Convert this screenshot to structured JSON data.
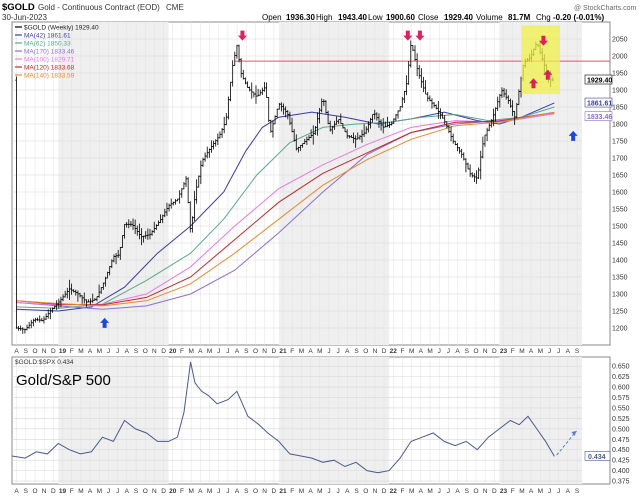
{
  "header": {
    "symbol": "$GOLD",
    "name": "Gold - Continuous Contract (EOD)",
    "exchange": "CME",
    "date": "30-Jun-2023",
    "open_label": "Open",
    "open": "1936.30",
    "high_label": "High",
    "high": "1943.40",
    "low_label": "Low",
    "low": "1900.60",
    "close_label": "Close",
    "close": "1929.40",
    "volume_label": "Volume",
    "volume": "81.7M",
    "chg_label": "Chg",
    "chg": "-0.20 (-0.01%)",
    "watermark": "@ StockCharts.com"
  },
  "legend": [
    {
      "text": "$GOLD (Weekly) 1929.40",
      "color": "#000000"
    },
    {
      "text": "MA(42) 1861.61",
      "color": "#3a3aa8"
    },
    {
      "text": "MA(62) 1850.33",
      "color": "#5aa88a"
    },
    {
      "text": "MA(170) 1833.46",
      "color": "#8b6fd0"
    },
    {
      "text": "MA(100) 1829.71",
      "color": "#e87ae0"
    },
    {
      "text": "MA(120) 1833.68",
      "color": "#c02828"
    },
    {
      "text": "MA(140) 1833.59",
      "color": "#e88a30"
    }
  ],
  "chart_data": [
    {
      "type": "line",
      "title": "Gold - Continuous Contract (EOD) Weekly",
      "ylim": [
        1150,
        2100
      ],
      "yticks": [
        1200,
        1250,
        1300,
        1350,
        1400,
        1450,
        1500,
        1550,
        1600,
        1650,
        1700,
        1750,
        1800,
        1850,
        1900,
        1950,
        2000,
        2050
      ],
      "x_range": [
        2018.58,
        2023.75
      ],
      "month_ticks": [
        "A",
        "S",
        "O",
        "N",
        "D",
        "19",
        "F",
        "M",
        "A",
        "M",
        "J",
        "J",
        "A",
        "S",
        "O",
        "N",
        "D",
        "20",
        "F",
        "M",
        "A",
        "M",
        "J",
        "J",
        "A",
        "S",
        "O",
        "N",
        "D",
        "21",
        "F",
        "M",
        "A",
        "M",
        "J",
        "J",
        "A",
        "S",
        "O",
        "N",
        "D",
        "22",
        "F",
        "M",
        "A",
        "M",
        "J",
        "J",
        "A",
        "S",
        "O",
        "N",
        "D",
        "23",
        "F",
        "M",
        "A",
        "M",
        "J",
        "J",
        "A",
        "S"
      ],
      "resistance_level": 1985,
      "value_tags": [
        {
          "value": 1929.4,
          "label": "1929.40"
        },
        {
          "value": 1861.61,
          "label": "1861.61"
        },
        {
          "value": 1833.46,
          "label": "1833.46"
        }
      ],
      "price": {
        "x": [
          2018.62,
          2018.7,
          2018.78,
          2018.86,
          2018.94,
          2019.02,
          2019.1,
          2019.18,
          2019.26,
          2019.34,
          2019.42,
          2019.5,
          2019.55,
          2019.6,
          2019.67,
          2019.75,
          2019.83,
          2019.92,
          2020.0,
          2020.08,
          2020.16,
          2020.2,
          2020.24,
          2020.3,
          2020.38,
          2020.46,
          2020.52,
          2020.58,
          2020.62,
          2020.66,
          2020.72,
          2020.8,
          2020.88,
          2020.92,
          2021.0,
          2021.08,
          2021.16,
          2021.24,
          2021.32,
          2021.4,
          2021.46,
          2021.54,
          2021.62,
          2021.7,
          2021.78,
          2021.86,
          2021.94,
          2022.02,
          2022.1,
          2022.16,
          2022.2,
          2022.26,
          2022.34,
          2022.42,
          2022.5,
          2022.58,
          2022.66,
          2022.74,
          2022.8,
          2022.86,
          2022.94,
          2023.02,
          2023.08,
          2023.14,
          2023.22,
          2023.28,
          2023.34,
          2023.4,
          2023.46,
          2023.5
        ],
        "values": [
          1200,
          1195,
          1225,
          1222,
          1255,
          1282,
          1315,
          1300,
          1275,
          1285,
          1340,
          1410,
          1415,
          1505,
          1505,
          1468,
          1475,
          1515,
          1560,
          1578,
          1640,
          1480,
          1590,
          1690,
          1730,
          1765,
          1810,
          1970,
          2030,
          1945,
          1905,
          1880,
          1910,
          1770,
          1860,
          1830,
          1725,
          1750,
          1775,
          1880,
          1780,
          1815,
          1765,
          1755,
          1775,
          1835,
          1790,
          1800,
          1850,
          1920,
          2040,
          1955,
          1880,
          1850,
          1810,
          1750,
          1710,
          1650,
          1640,
          1760,
          1820,
          1900,
          1870,
          1820,
          1980,
          1995,
          2040,
          1980,
          1930,
          1929
        ]
      },
      "series": [
        {
          "name": "MA(42)",
          "color": "#3a3aa8",
          "x": [
            2018.62,
            2019.0,
            2019.3,
            2019.6,
            2019.9,
            2020.2,
            2020.5,
            2020.7,
            2020.85,
            2021.0,
            2021.3,
            2021.6,
            2021.9,
            2022.2,
            2022.5,
            2022.8,
            2023.0,
            2023.2,
            2023.5
          ],
          "values": [
            1255,
            1250,
            1262,
            1320,
            1420,
            1500,
            1600,
            1720,
            1790,
            1820,
            1835,
            1820,
            1800,
            1815,
            1835,
            1810,
            1800,
            1820,
            1862
          ]
        },
        {
          "name": "MA(62)",
          "color": "#5aa88a",
          "x": [
            2018.62,
            2019.0,
            2019.4,
            2019.8,
            2020.2,
            2020.5,
            2020.8,
            2021.1,
            2021.4,
            2021.7,
            2022.0,
            2022.3,
            2022.6,
            2022.9,
            2023.2,
            2023.5
          ],
          "values": [
            1262,
            1258,
            1270,
            1340,
            1420,
            1520,
            1650,
            1745,
            1790,
            1800,
            1805,
            1820,
            1828,
            1810,
            1820,
            1850
          ]
        },
        {
          "name": "MA(170)",
          "color": "#8b6fd0",
          "x": [
            2018.62,
            2019.0,
            2019.4,
            2019.8,
            2020.2,
            2020.6,
            2021.0,
            2021.4,
            2021.8,
            2022.2,
            2022.6,
            2023.0,
            2023.5
          ],
          "values": [
            1275,
            1265,
            1255,
            1265,
            1300,
            1370,
            1480,
            1600,
            1710,
            1775,
            1800,
            1810,
            1833
          ]
        },
        {
          "name": "MA(100)",
          "color": "#e87ae0",
          "x": [
            2018.62,
            2019.0,
            2019.4,
            2019.8,
            2020.2,
            2020.6,
            2021.0,
            2021.4,
            2021.8,
            2022.2,
            2022.6,
            2023.0,
            2023.5
          ],
          "values": [
            1275,
            1268,
            1270,
            1300,
            1380,
            1500,
            1610,
            1680,
            1740,
            1790,
            1810,
            1805,
            1830
          ]
        },
        {
          "name": "MA(120)",
          "color": "#c02828",
          "x": [
            2018.62,
            2019.0,
            2019.4,
            2019.8,
            2020.2,
            2020.6,
            2021.0,
            2021.4,
            2021.8,
            2022.2,
            2022.6,
            2023.0,
            2023.5
          ],
          "values": [
            1280,
            1270,
            1268,
            1290,
            1350,
            1460,
            1570,
            1655,
            1715,
            1775,
            1805,
            1808,
            1834
          ]
        },
        {
          "name": "MA(140)",
          "color": "#e88a30",
          "x": [
            2018.62,
            2019.0,
            2019.4,
            2019.8,
            2020.2,
            2020.6,
            2021.0,
            2021.4,
            2021.8,
            2022.2,
            2022.6,
            2023.0,
            2023.5
          ],
          "values": [
            1280,
            1272,
            1265,
            1280,
            1330,
            1420,
            1520,
            1620,
            1695,
            1755,
            1795,
            1806,
            1834
          ]
        }
      ],
      "annotations": [
        {
          "type": "down-arrow",
          "x": 2020.67,
          "y": 2060
        },
        {
          "type": "down-arrow",
          "x": 2022.17,
          "y": 2060
        },
        {
          "type": "down-arrow",
          "x": 2022.28,
          "y": 2060
        },
        {
          "type": "down-arrow",
          "x": 2023.4,
          "y": 2045
        },
        {
          "type": "up-arrow",
          "x": 2023.31,
          "y": 1920
        },
        {
          "type": "up-arrow",
          "x": 2023.44,
          "y": 1945
        },
        {
          "type": "blue-up-arrow",
          "x": 2019.42,
          "y": 1215
        },
        {
          "type": "blue-up-arrow",
          "x": 2023.67,
          "y": 1765
        },
        {
          "type": "highlight-box",
          "x0": 2023.2,
          "x1": 2023.55,
          "y0": 1888,
          "y1": 2090
        }
      ]
    },
    {
      "type": "line",
      "title": "Gold/S&P 500",
      "legend": "$GOLD:$SPX 0.434",
      "ylim": [
        0.368,
        0.672
      ],
      "yticks": [
        0.375,
        0.4,
        0.425,
        0.45,
        0.475,
        0.5,
        0.525,
        0.55,
        0.575,
        0.6,
        0.625,
        0.65
      ],
      "current_label": "0.434",
      "series": [
        {
          "name": "$GOLD:$SPX",
          "color": "#4a5a8a",
          "x": [
            2018.58,
            2018.7,
            2018.8,
            2018.9,
            2019.0,
            2019.1,
            2019.2,
            2019.3,
            2019.4,
            2019.5,
            2019.6,
            2019.7,
            2019.8,
            2019.9,
            2020.0,
            2020.08,
            2020.14,
            2020.2,
            2020.24,
            2020.3,
            2020.36,
            2020.44,
            2020.54,
            2020.62,
            2020.72,
            2020.82,
            2020.9,
            2021.0,
            2021.1,
            2021.2,
            2021.3,
            2021.4,
            2021.5,
            2021.6,
            2021.7,
            2021.8,
            2021.9,
            2022.0,
            2022.1,
            2022.2,
            2022.3,
            2022.4,
            2022.5,
            2022.6,
            2022.7,
            2022.8,
            2022.9,
            2023.0,
            2023.1,
            2023.18,
            2023.26,
            2023.34,
            2023.42,
            2023.5
          ],
          "values": [
            0.435,
            0.43,
            0.445,
            0.44,
            0.465,
            0.45,
            0.44,
            0.445,
            0.48,
            0.47,
            0.52,
            0.5,
            0.49,
            0.47,
            0.47,
            0.48,
            0.54,
            0.66,
            0.61,
            0.59,
            0.58,
            0.56,
            0.57,
            0.59,
            0.53,
            0.51,
            0.49,
            0.47,
            0.44,
            0.435,
            0.43,
            0.42,
            0.425,
            0.41,
            0.42,
            0.4,
            0.395,
            0.4,
            0.43,
            0.47,
            0.48,
            0.49,
            0.47,
            0.46,
            0.47,
            0.45,
            0.48,
            0.5,
            0.52,
            0.51,
            0.53,
            0.5,
            0.47,
            0.434
          ]
        },
        {
          "name": "projection",
          "color": "#5a7ad0",
          "dashed": true,
          "x": [
            2023.52,
            2023.7
          ],
          "values": [
            0.437,
            0.495
          ]
        }
      ]
    }
  ]
}
